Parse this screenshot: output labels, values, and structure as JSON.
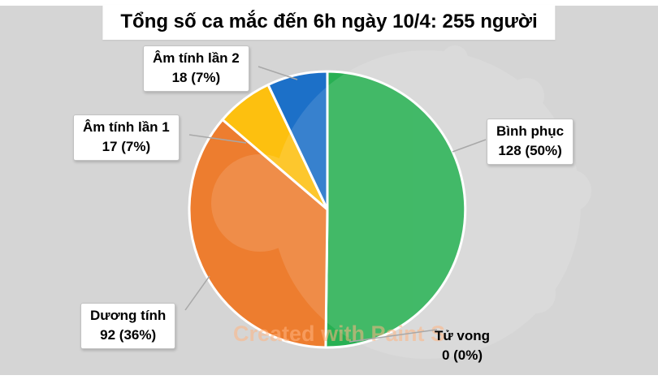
{
  "title": "Tổng số ca mắc đến 6h ngày 10/4: 255 người",
  "watermark": "Created with Paint S",
  "page_bg": "#d5d5d5",
  "chart_data": {
    "type": "pie",
    "title": "Tổng số ca mắc đến 6h ngày 10/4: 255 người",
    "total": 255,
    "start_angle_deg": 0,
    "direction": "clockwise",
    "legend_position": "callouts",
    "slices": [
      {
        "slug": "binh-phuc",
        "label": "Bình phục",
        "value": 128,
        "percent": "50%",
        "display": "128 (50%)",
        "color": "#28b053"
      },
      {
        "slug": "tu-vong",
        "label": "Tử vong",
        "value": 0,
        "percent": "0%",
        "display": "0 (0%)",
        "color": "#9e9e9e"
      },
      {
        "slug": "duong-tinh",
        "label": "Dương tính",
        "value": 92,
        "percent": "36%",
        "display": "92 (36%)",
        "color": "#ed7d2f"
      },
      {
        "slug": "am-tinh-lan-1",
        "label": "Âm tính lần 1",
        "value": 17,
        "percent": "7%",
        "display": "17 (7%)",
        "color": "#fdc00f"
      },
      {
        "slug": "am-tinh-lan-2",
        "label": "Âm tính lần 2",
        "value": 18,
        "percent": "7%",
        "display": "18 (7%)",
        "color": "#1c70c8"
      }
    ]
  }
}
